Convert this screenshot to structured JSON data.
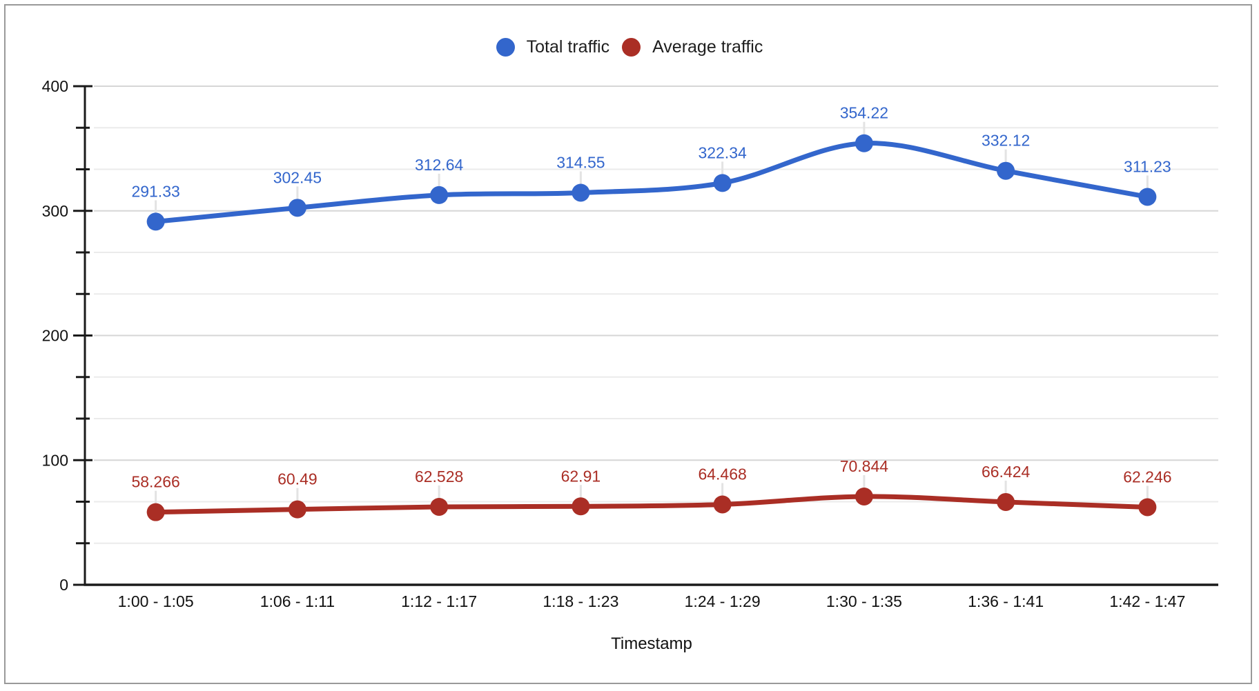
{
  "frame": {
    "border_color": "#999999",
    "background": "#ffffff"
  },
  "chart_data": {
    "type": "line",
    "smooth": true,
    "title": "",
    "xlabel": "Timestamp",
    "ylabel": "",
    "x": [
      "1:00 - 1:05",
      "1:06 - 1:11",
      "1:12 - 1:17",
      "1:18 - 1:23",
      "1:24 - 1:29",
      "1:30 - 1:35",
      "1:36 - 1:41",
      "1:42 - 1:47"
    ],
    "series": [
      {
        "name": "Total traffic",
        "color": "#3366CC",
        "values": [
          291.33,
          302.45,
          312.64,
          314.55,
          322.34,
          354.22,
          332.12,
          311.23
        ],
        "labels": [
          "291.33",
          "302.45",
          "312.64",
          "314.55",
          "322.34",
          "354.22",
          "332.12",
          "311.23"
        ]
      },
      {
        "name": "Average traffic",
        "color": "#AA2E25",
        "values": [
          58.266,
          60.49,
          62.528,
          62.91,
          64.468,
          70.844,
          66.424,
          62.246
        ],
        "labels": [
          "58.266",
          "60.49",
          "62.528",
          "62.91",
          "64.468",
          "70.844",
          "66.424",
          "62.246"
        ]
      }
    ],
    "ylim": [
      0,
      400
    ],
    "y_tick_labels": [
      "0",
      "100",
      "200",
      "300",
      "400"
    ],
    "y_major_step": 100,
    "y_minor_divisions": 3,
    "grid": true,
    "legend_position": "top",
    "point_labels": true
  }
}
